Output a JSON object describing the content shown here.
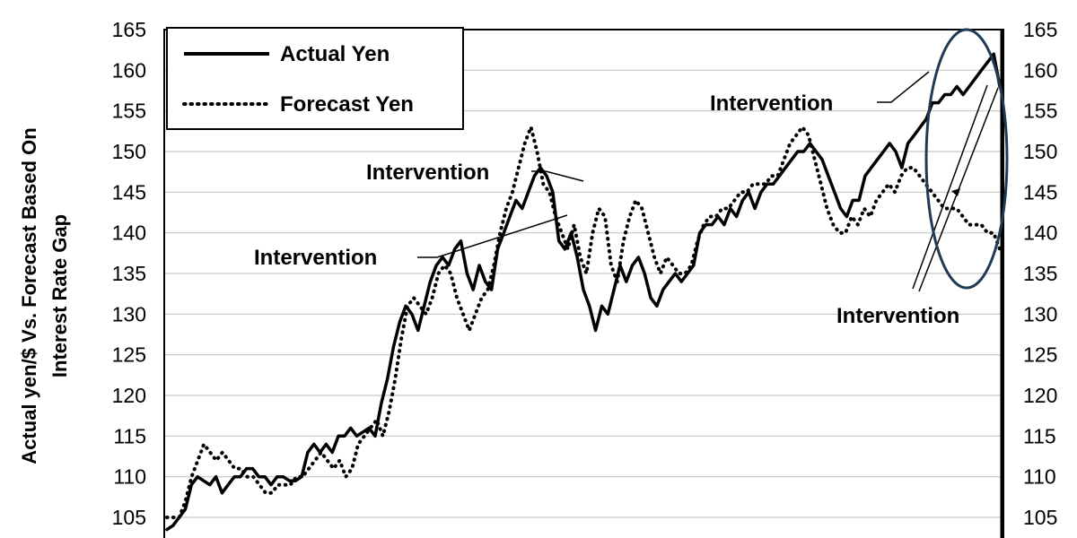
{
  "chart_data": {
    "type": "line",
    "ylabel_line1": "Actual yen/$ Vs. Forecast Based On",
    "ylabel_line2": "Interest Rate Gap",
    "ylim": [
      103,
      165
    ],
    "yticks": [
      105,
      110,
      115,
      120,
      125,
      130,
      135,
      140,
      145,
      150,
      155,
      160,
      165
    ],
    "grid": true,
    "legend_position": "top-left",
    "series": [
      {
        "name": "Actual Yen",
        "style": "solid",
        "color": "#000000",
        "values": [
          103.5,
          104,
          105,
          106,
          109,
          110,
          109.5,
          109,
          110,
          108,
          109,
          110,
          110,
          111,
          111,
          110,
          110,
          109,
          110,
          110,
          109.5,
          109.5,
          110,
          113,
          114,
          113,
          114,
          113,
          115,
          115,
          116,
          115,
          115.5,
          116,
          115,
          119,
          122,
          126,
          129,
          131,
          130,
          128,
          131,
          134,
          136,
          137,
          136,
          138,
          139,
          135,
          133,
          136,
          134,
          133,
          138,
          140,
          142,
          144,
          143,
          145,
          147,
          148,
          147,
          145,
          139,
          138,
          140,
          137,
          133,
          131,
          128,
          131,
          130,
          133,
          136,
          134,
          136,
          137,
          135,
          132,
          131,
          133,
          134,
          135,
          134,
          135,
          136,
          140,
          141,
          141,
          142,
          141,
          143,
          142,
          144,
          145,
          143,
          145,
          146,
          146,
          147,
          148,
          149,
          150,
          150,
          151,
          150,
          149,
          147,
          145,
          143,
          142,
          144,
          144,
          147,
          148,
          149,
          150,
          151,
          150,
          148,
          151,
          152,
          153,
          154,
          156,
          156,
          157,
          157,
          158,
          157,
          158,
          159,
          160,
          161,
          162,
          158
        ]
      },
      {
        "name": "Forecast Yen",
        "style": "dotted",
        "color": "#000000",
        "values": [
          105,
          105,
          105,
          107,
          110,
          112,
          114,
          113,
          112,
          113,
          112,
          111,
          111,
          110,
          110,
          109,
          108,
          108,
          109,
          109,
          109,
          110,
          110,
          111,
          112,
          113,
          112,
          111,
          112,
          110,
          111,
          114,
          115,
          116,
          117,
          115,
          118,
          122,
          127,
          131,
          132,
          131,
          130,
          132,
          135,
          136,
          135,
          132,
          130,
          128,
          130,
          132,
          133,
          136,
          140,
          143,
          145,
          148,
          151,
          153,
          150,
          146,
          145,
          142,
          140,
          138,
          141,
          137,
          135,
          140,
          143,
          142,
          136,
          134,
          139,
          142,
          144,
          143,
          140,
          137,
          135,
          137,
          136,
          135,
          135,
          136,
          139,
          141,
          142,
          142,
          143,
          143,
          144,
          145,
          145,
          146,
          146,
          146,
          147,
          147,
          149,
          151,
          152,
          153,
          152,
          149,
          146,
          143,
          141,
          140,
          140,
          142,
          141,
          143,
          142,
          144,
          145,
          146,
          145,
          147,
          148,
          148,
          147,
          146,
          145,
          144,
          143,
          143,
          143,
          142,
          141,
          141,
          141,
          140,
          140,
          138
        ]
      }
    ],
    "annotations": [
      {
        "text": "Intervention",
        "id": "a1"
      },
      {
        "text": "Intervention",
        "id": "a2"
      },
      {
        "text": "Intervention",
        "id": "a3"
      },
      {
        "text": "Intervention",
        "id": "a4"
      }
    ],
    "highlight_ellipse_color": "#1f3a55"
  }
}
